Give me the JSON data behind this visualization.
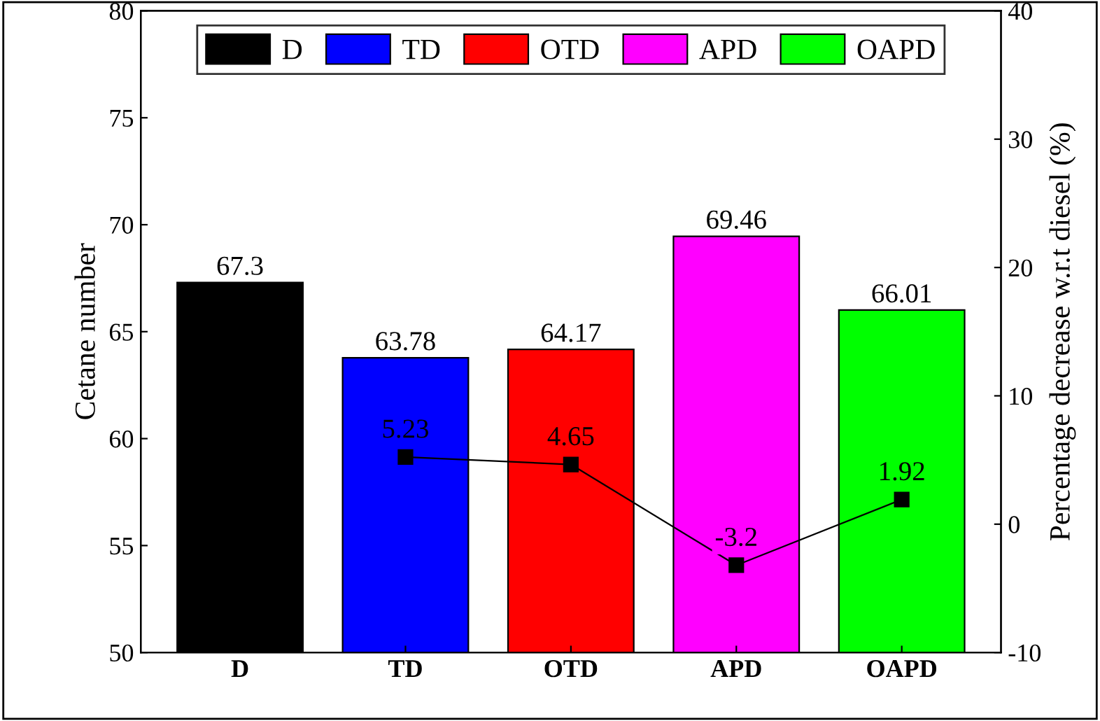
{
  "chart_data": {
    "type": "bar",
    "ylabel": "Cetane number",
    "y2label": "Percentage decrease w.r.t diesel (%)",
    "categories": [
      "D",
      "TD",
      "OTD",
      "APD",
      "OAPD"
    ],
    "series": [
      {
        "type": "bar",
        "name": "D",
        "color": "#000000",
        "values": [
          67.3,
          null,
          null,
          null,
          null
        ]
      },
      {
        "type": "bar",
        "name": "TD",
        "color": "#0000ff",
        "values": [
          null,
          63.78,
          null,
          null,
          null
        ]
      },
      {
        "type": "bar",
        "name": "OTD",
        "color": "#ff0000",
        "values": [
          null,
          null,
          64.17,
          null,
          null
        ]
      },
      {
        "type": "bar",
        "name": "APD",
        "color": "#ff00ff",
        "values": [
          null,
          null,
          null,
          69.46,
          null
        ]
      },
      {
        "type": "bar",
        "name": "OAPD",
        "color": "#00ff00",
        "values": [
          null,
          null,
          null,
          null,
          66.01
        ]
      },
      {
        "type": "line",
        "axis": "y2",
        "color": "#000000",
        "marker": "square",
        "values": [
          null,
          5.23,
          4.65,
          -3.2,
          1.92
        ]
      }
    ],
    "ylim": [
      50,
      80
    ],
    "yticks": [
      50,
      55,
      60,
      65,
      70,
      75,
      80
    ],
    "y2lim": [
      -10,
      40
    ],
    "y2ticks": [
      -10,
      0,
      10,
      20,
      30,
      40
    ],
    "data_labels": true,
    "legend": "top",
    "grid": false
  }
}
